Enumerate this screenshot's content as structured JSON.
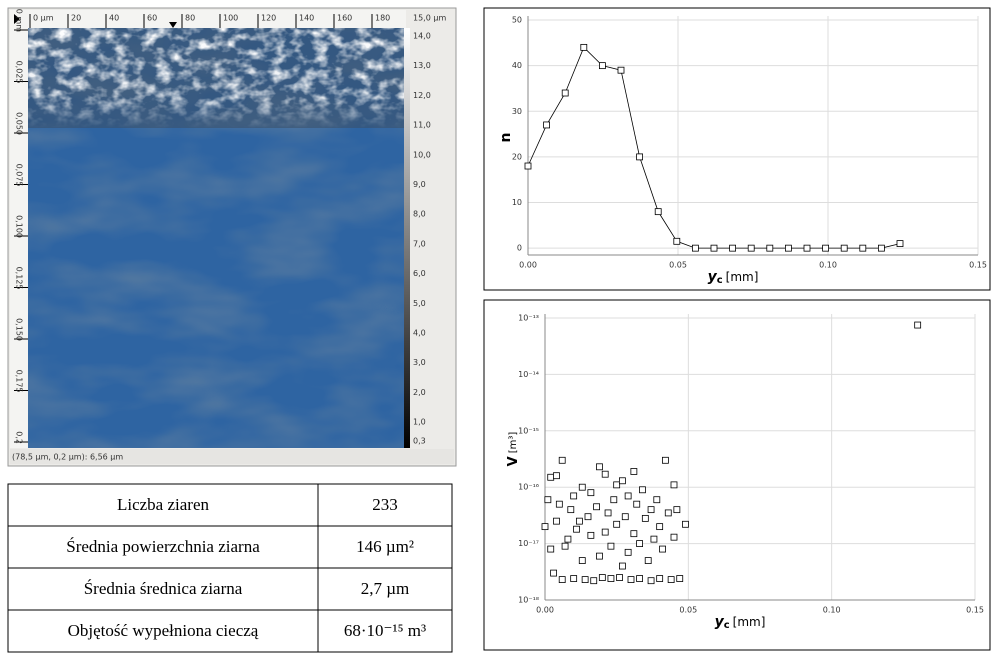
{
  "image": {
    "top_ruler": [
      "0 µm",
      "20",
      "40",
      "60",
      "80",
      "100",
      "120",
      "140",
      "160",
      "180"
    ],
    "left_ruler": [
      "0 mm",
      "0,025",
      "0,050",
      "0,075",
      "0,100",
      "0,125",
      "0,150",
      "0,175",
      "0,2"
    ],
    "colorbar_labels": [
      "15,0 µm",
      "14,0",
      "13,0",
      "12,0",
      "11,0",
      "10,0",
      "9,0",
      "8,0",
      "7,0",
      "6,0",
      "5,0",
      "4,0",
      "3,0",
      "2,0",
      "1,0",
      "0,3"
    ],
    "status": "(78,5 µm, 0,2 µm): 6,56 µm"
  },
  "table": {
    "rows": [
      [
        "Liczba ziaren",
        "233"
      ],
      [
        "Średnia powierzchnia ziarna",
        "146 µm²"
      ],
      [
        "Średnia średnica ziarna",
        "2,7 µm"
      ],
      [
        "Objętość wypełniona cieczą",
        "68·10⁻¹⁵ m³"
      ]
    ]
  },
  "chart_data": [
    {
      "type": "line",
      "color": "#000000",
      "marker": "square",
      "grid": true,
      "y_label": "n",
      "x_label": {
        "symbol": "y",
        "subscript": "c",
        "unit": "[mm]"
      },
      "x": [
        0,
        0.0062,
        0.0124,
        0.0186,
        0.0248,
        0.031,
        0.0372,
        0.0434,
        0.0496,
        0.0558,
        0.062,
        0.0682,
        0.0744,
        0.0806,
        0.0868,
        0.093,
        0.0992,
        0.1054,
        0.1116,
        0.1178,
        0.124
      ],
      "values": [
        18,
        27,
        34,
        44,
        40,
        39,
        20,
        8,
        1.5,
        0,
        0,
        0,
        0,
        0,
        0,
        0,
        0,
        0,
        0,
        0,
        1
      ],
      "xlim": [
        0,
        0.15
      ],
      "xticks": [
        {
          "value": 0,
          "label": "0.00"
        },
        0.05,
        {
          "value": 0.1,
          "label": "0.10"
        },
        0.15
      ],
      "ylim": [
        -1.5,
        50
      ],
      "yticks": [
        0,
        10,
        20,
        30,
        40,
        50
      ]
    },
    {
      "type": "scatter",
      "color": "#000000",
      "marker": "square",
      "grid": true,
      "yscale": "log",
      "y_label": {
        "symbol": "V",
        "unit": "[m³]"
      },
      "x_label": {
        "symbol": "y",
        "subscript": "c",
        "unit": "[mm]"
      },
      "x": [
        0.0,
        0.001,
        0.002,
        0.002,
        0.003,
        0.004,
        0.004,
        0.005,
        0.006,
        0.006,
        0.007,
        0.008,
        0.009,
        0.01,
        0.01,
        0.011,
        0.012,
        0.013,
        0.013,
        0.014,
        0.015,
        0.016,
        0.016,
        0.017,
        0.018,
        0.019,
        0.019,
        0.02,
        0.021,
        0.021,
        0.022,
        0.023,
        0.023,
        0.024,
        0.025,
        0.025,
        0.026,
        0.027,
        0.027,
        0.028,
        0.029,
        0.029,
        0.03,
        0.031,
        0.031,
        0.032,
        0.033,
        0.033,
        0.034,
        0.035,
        0.036,
        0.037,
        0.037,
        0.038,
        0.039,
        0.04,
        0.04,
        0.041,
        0.042,
        0.043,
        0.044,
        0.045,
        0.045,
        0.046,
        0.047,
        0.049,
        0.13
      ],
      "values": [
        2e-17,
        6e-17,
        1.5e-16,
        8e-18,
        3e-18,
        1.6e-16,
        2.5e-17,
        5e-17,
        2.3e-18,
        3e-16,
        9e-18,
        1.2e-17,
        4e-17,
        2.4e-18,
        7e-17,
        1.8e-17,
        2.5e-17,
        5e-18,
        1e-16,
        2.3e-18,
        3e-17,
        8e-17,
        1.4e-17,
        2.2e-18,
        4.5e-17,
        2.3e-16,
        6e-18,
        2.5e-18,
        1.6e-17,
        1.7e-16,
        3.5e-17,
        2.4e-18,
        9e-18,
        6e-17,
        1.1e-16,
        2.2e-17,
        2.5e-18,
        4e-18,
        1.3e-16,
        3e-17,
        7e-18,
        7e-17,
        2.3e-18,
        1.9e-16,
        1.5e-17,
        5e-17,
        2.4e-18,
        1e-17,
        9e-17,
        2.8e-17,
        5e-18,
        2.2e-18,
        4e-17,
        1.2e-17,
        6e-17,
        2.4e-18,
        2e-17,
        8e-18,
        3e-16,
        3.5e-17,
        2.3e-18,
        1.1e-16,
        1.3e-17,
        4e-17,
        2.4e-18,
        2.2e-17,
        7.5e-14
      ],
      "xlim": [
        0,
        0.15
      ],
      "xticks": [
        {
          "value": 0,
          "label": "0.00"
        },
        0.05,
        {
          "value": 0.1,
          "label": "0.10"
        },
        0.15
      ],
      "ylim": [
        1e-18,
        1e-13
      ],
      "yticks": [
        {
          "value": 1e-18,
          "label": "10⁻¹⁸"
        },
        {
          "value": 1e-17,
          "label": "10⁻¹⁷"
        },
        {
          "value": 1e-16,
          "label": "10⁻¹⁶"
        },
        {
          "value": 1e-15,
          "label": "10⁻¹⁵"
        },
        {
          "value": 1e-14,
          "label": "10⁻¹⁴"
        },
        {
          "value": 1e-13,
          "label": "10⁻¹³"
        }
      ]
    }
  ]
}
